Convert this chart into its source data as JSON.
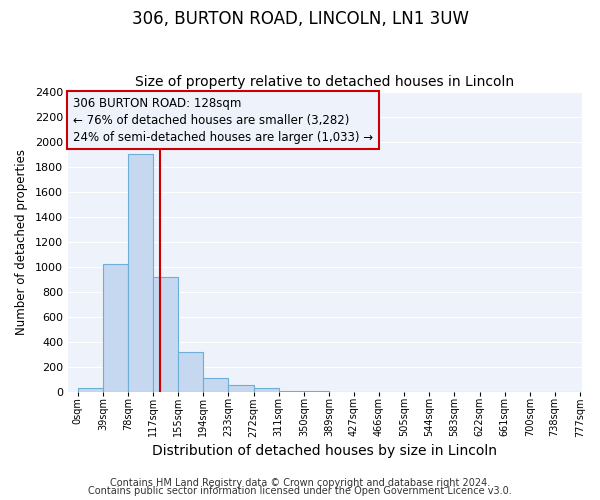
{
  "title": "306, BURTON ROAD, LINCOLN, LN1 3UW",
  "subtitle": "Size of property relative to detached houses in Lincoln",
  "xlabel": "Distribution of detached houses by size in Lincoln",
  "ylabel": "Number of detached properties",
  "bar_edges": [
    0,
    39,
    78,
    117,
    155,
    194,
    233,
    272,
    311,
    350,
    389,
    427,
    466,
    505,
    544,
    583,
    622,
    661,
    700,
    738,
    777
  ],
  "bar_heights": [
    25,
    1020,
    1900,
    920,
    315,
    110,
    50,
    30,
    5,
    2,
    0,
    0,
    0,
    0,
    0,
    0,
    0,
    0,
    0,
    0
  ],
  "bar_color": "#c5d8f0",
  "bar_edge_color": "#6baed6",
  "vertical_line_x": 128,
  "vertical_line_color": "#cc0000",
  "annotation_line1": "306 BURTON ROAD: 128sqm",
  "annotation_line2": "← 76% of detached houses are smaller (3,282)",
  "annotation_line3": "24% of semi-detached houses are larger (1,033) →",
  "ylim": [
    0,
    2400
  ],
  "xlim_min": -15,
  "xlim_max": 780,
  "tick_labels": [
    "0sqm",
    "39sqm",
    "78sqm",
    "117sqm",
    "155sqm",
    "194sqm",
    "233sqm",
    "272sqm",
    "311sqm",
    "350sqm",
    "389sqm",
    "427sqm",
    "466sqm",
    "505sqm",
    "544sqm",
    "583sqm",
    "622sqm",
    "661sqm",
    "700sqm",
    "738sqm",
    "777sqm"
  ],
  "tick_positions": [
    0,
    39,
    78,
    117,
    155,
    194,
    233,
    272,
    311,
    350,
    389,
    427,
    466,
    505,
    544,
    583,
    622,
    661,
    700,
    738,
    777
  ],
  "figure_bg": "#ffffff",
  "plot_bg": "#eef2fb",
  "grid_color": "#ffffff",
  "footnote1": "Contains HM Land Registry data © Crown copyright and database right 2024.",
  "footnote2": "Contains public sector information licensed under the Open Government Licence v3.0.",
  "title_fontsize": 12,
  "subtitle_fontsize": 10,
  "xlabel_fontsize": 10,
  "ylabel_fontsize": 8.5,
  "annotation_fontsize": 8.5,
  "tick_fontsize": 7,
  "ytick_fontsize": 8,
  "footnote_fontsize": 7
}
